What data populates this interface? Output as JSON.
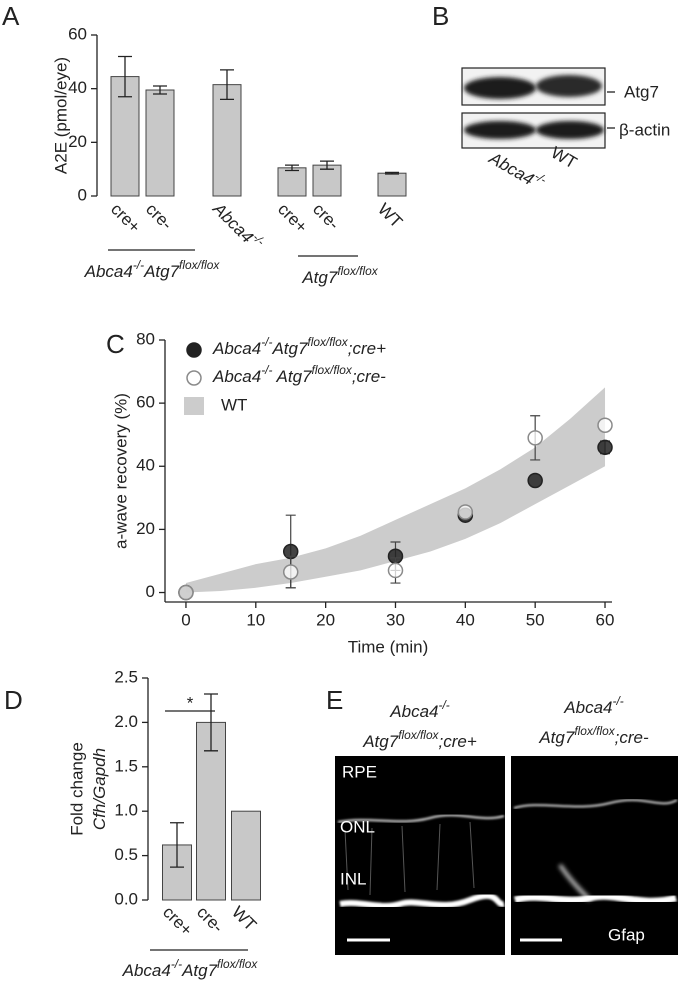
{
  "panel_labels": [
    "A",
    "B",
    "C",
    "D",
    "E"
  ],
  "blot": {
    "bands": [
      "Atg7",
      "β-actin"
    ],
    "lanes": [
      [
        {
          "text": "Abca4",
          "italic": true
        },
        {
          "text": "-/-",
          "sup": true,
          "italic": true
        }
      ],
      "WT"
    ]
  },
  "micrograph": {
    "columns": [
      [
        [
          {
            "text": "Abca4",
            "italic": true
          },
          {
            "text": "-/-",
            "sup": true,
            "italic": true
          }
        ],
        [
          {
            "text": "Atg7",
            "italic": true
          },
          {
            "text": "flox/flox",
            "sup": true,
            "italic": true
          },
          {
            "text": ";cre+",
            "italic": true
          }
        ]
      ],
      [
        [
          {
            "text": "Abca4",
            "italic": true
          },
          {
            "text": "-/-",
            "sup": true,
            "italic": true
          }
        ],
        [
          {
            "text": "Atg7",
            "italic": true
          },
          {
            "text": "flox/flox",
            "sup": true,
            "italic": true
          },
          {
            "text": ";cre-",
            "italic": true
          }
        ]
      ]
    ],
    "layers": [
      "RPE",
      "ONL",
      "INL"
    ],
    "stain": "Gfap"
  },
  "chart_data": [
    {
      "type": "bar",
      "ylabel": "A2E (pmol/eye)",
      "categories": [
        "cre+",
        "cre-",
        [
          {
            "text": "Abca4",
            "italic": true
          },
          {
            "text": "-/-",
            "sup": true,
            "italic": true
          }
        ],
        "cre+",
        "cre-",
        "WT"
      ],
      "values": [
        44.5,
        39.5,
        41.5,
        10.5,
        11.5,
        8.5
      ],
      "errors": [
        7.5,
        1.5,
        5.5,
        1,
        1.5,
        0.3
      ],
      "color": "#c8c8c8",
      "ylim": [
        0,
        60
      ],
      "yticks": [
        0,
        20,
        40,
        60
      ],
      "groups": [
        {
          "label": [
            {
              "text": "Abca4",
              "italic": true
            },
            {
              "text": "-/-",
              "sup": true,
              "italic": true
            },
            {
              "text": "Atg7",
              "italic": true
            },
            {
              "text": "flox/flox",
              "sup": true,
              "italic": true
            }
          ]
        },
        {
          "label": [
            {
              "text": "Atg7",
              "italic": true
            },
            {
              "text": "flox/flox",
              "sup": true,
              "italic": true
            }
          ]
        }
      ]
    },
    {
      "type": "scatter",
      "xlabel": "Time (min)",
      "ylabel": "a-wave recovery (%)",
      "xlim": [
        -3,
        61
      ],
      "ylim": [
        -3,
        80
      ],
      "xticks": [
        0,
        10,
        20,
        30,
        40,
        50,
        60
      ],
      "yticks": [
        0,
        20,
        40,
        60,
        80
      ],
      "series": [
        {
          "name": [
            {
              "text": "Abca4",
              "italic": true
            },
            {
              "text": "-/-",
              "sup": true,
              "italic": true
            },
            {
              "text": "Atg7",
              "italic": true
            },
            {
              "text": "flox/flox",
              "sup": true,
              "italic": true
            },
            {
              "text": ";cre+",
              "italic": true
            }
          ],
          "marker": "filled",
          "color": "#222222",
          "x": [
            0,
            15,
            30,
            40,
            50,
            60
          ],
          "values": [
            0,
            13,
            11.5,
            24.5,
            35.5,
            46
          ],
          "errors": [
            null,
            11.5,
            4.5,
            null,
            null,
            2
          ]
        },
        {
          "name": [
            {
              "text": "Abca4",
              "italic": true
            },
            {
              "text": "-/-",
              "sup": true,
              "italic": true
            },
            {
              "text": " Atg7",
              "italic": true
            },
            {
              "text": "flox/flox",
              "sup": true,
              "italic": true
            },
            {
              "text": ";cre-",
              "italic": true
            }
          ],
          "marker": "open",
          "color": "#8a8a8a",
          "x": [
            0,
            15,
            30,
            40,
            50,
            60
          ],
          "values": [
            0,
            6.5,
            7,
            25.5,
            49,
            53
          ],
          "errors": [
            null,
            5,
            4,
            null,
            7,
            null
          ]
        },
        {
          "name": "WT",
          "type": "area",
          "color": "#cccccc",
          "x": [
            0,
            5,
            10,
            15,
            20,
            25,
            30,
            35,
            40,
            45,
            50,
            55,
            60
          ],
          "lower": [
            0,
            0.5,
            1.5,
            3,
            5,
            7,
            10,
            13,
            17,
            22,
            28,
            34,
            40
          ],
          "upper": [
            3,
            6,
            9,
            11,
            14,
            18,
            23,
            28,
            33,
            39,
            46,
            55,
            65
          ]
        }
      ]
    },
    {
      "type": "bar",
      "ylabel": [
        "Fold change",
        [
          {
            "text": "Cfh/Gapdh",
            "italic": true
          }
        ]
      ],
      "categories": [
        "cre+",
        "cre-",
        "WT"
      ],
      "values": [
        0.62,
        2.0,
        1.0
      ],
      "errors": [
        0.25,
        0.32,
        null
      ],
      "color": "#c8c8c8",
      "ylim": [
        0,
        2.5
      ],
      "yticks": [
        {
          "value": 0,
          "label": "0.0"
        },
        0.5,
        {
          "value": 1,
          "label": "1.0"
        },
        1.5,
        {
          "value": 2,
          "label": "2.0"
        },
        2.5
      ],
      "groups": [
        {
          "label": [
            {
              "text": "Abca4",
              "italic": true
            },
            {
              "text": "-/-",
              "sup": true,
              "italic": true
            },
            {
              "text": "Atg7",
              "italic": true
            },
            {
              "text": "flox/flox",
              "sup": true,
              "italic": true
            }
          ]
        }
      ],
      "annotations": [
        {
          "text": "*"
        }
      ]
    }
  ]
}
